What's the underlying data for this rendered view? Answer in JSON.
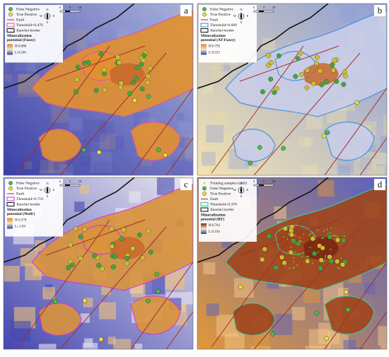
{
  "panels": [
    {
      "letter": "a",
      "legend": {
        "items": [
          "False Negative",
          "True Positive",
          "Fault",
          "Threshold=0.476",
          "Jiaochei border"
        ],
        "potential_title": [
          "Mineralization",
          "potential (Fuzzy)"
        ],
        "high": "H:0.686",
        "low": "L:0.244"
      },
      "compass": [
        "N",
        "E",
        "S",
        "W"
      ],
      "scale": [
        "0",
        "5",
        "10"
      ]
    },
    {
      "letter": "b",
      "legend": {
        "items": [
          "False Negative",
          "True Positive",
          "Fault",
          "Threshold=0.689",
          "Jiaochei border"
        ],
        "potential_title": [
          "Mineralization",
          "potential (AT-Fuzzy)"
        ],
        "high": "H:0.792",
        "low": "L:0.223"
      },
      "compass": [
        "N",
        "E",
        "S",
        "W"
      ],
      "scale": [
        "0",
        "5",
        "10"
      ]
    },
    {
      "letter": "c",
      "legend": {
        "items": [
          "False Negative",
          "True Positive",
          "Fault",
          "Threshold=0.719",
          "Jiaochei border"
        ],
        "potential_title": [
          "Mineralization",
          "potential (WofE)"
        ],
        "high": "H:3.570",
        "low": "L:-1.94"
      },
      "compass": [
        "N",
        "E",
        "S",
        "W"
      ],
      "scale": [
        "0",
        "5",
        "10"
      ]
    },
    {
      "letter": "d",
      "legend": {
        "items": [
          "Training samples (drill)",
          "False Negative",
          "True Positive",
          "Fault",
          "Threshold=0.376",
          "Jiaochei border"
        ],
        "potential_title": [
          "Mineralization",
          "potential (RF)"
        ],
        "high": "H:0.761",
        "low": "L:0.194"
      },
      "compass": [
        "N",
        "E",
        "S",
        "W"
      ],
      "scale": [
        "0",
        "5",
        "10"
      ]
    }
  ]
}
